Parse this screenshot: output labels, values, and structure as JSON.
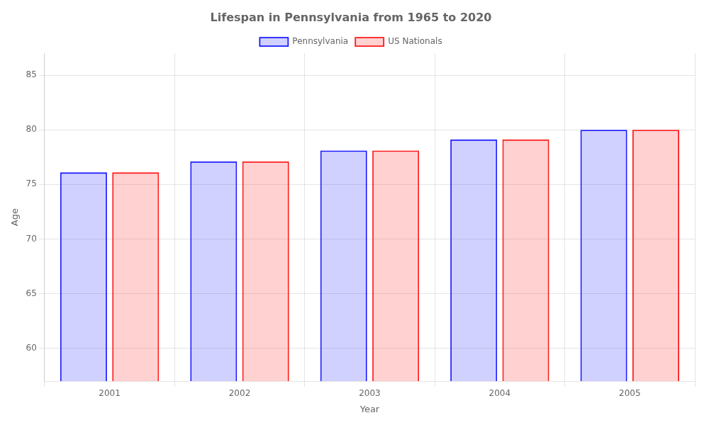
{
  "chart_data": {
    "type": "bar",
    "title": "Lifespan in Pennsylvania from 1965 to 2020",
    "x_label": "Year",
    "y_label": "Age",
    "categories": [
      "2001",
      "2002",
      "2003",
      "2004",
      "2005"
    ],
    "series": [
      {
        "name": "Pennsylvania",
        "color": "#1a1aff",
        "values": [
          76.1,
          77.1,
          78.1,
          79.1,
          80.0
        ]
      },
      {
        "name": "US Nationals",
        "color": "#ff1a1a",
        "values": [
          76.1,
          77.1,
          78.1,
          79.1,
          80.0
        ]
      }
    ],
    "ylim": [
      57,
      87
    ],
    "yticks": [
      60,
      65,
      70,
      75,
      80,
      85
    ],
    "grid": true,
    "legend": "top"
  }
}
